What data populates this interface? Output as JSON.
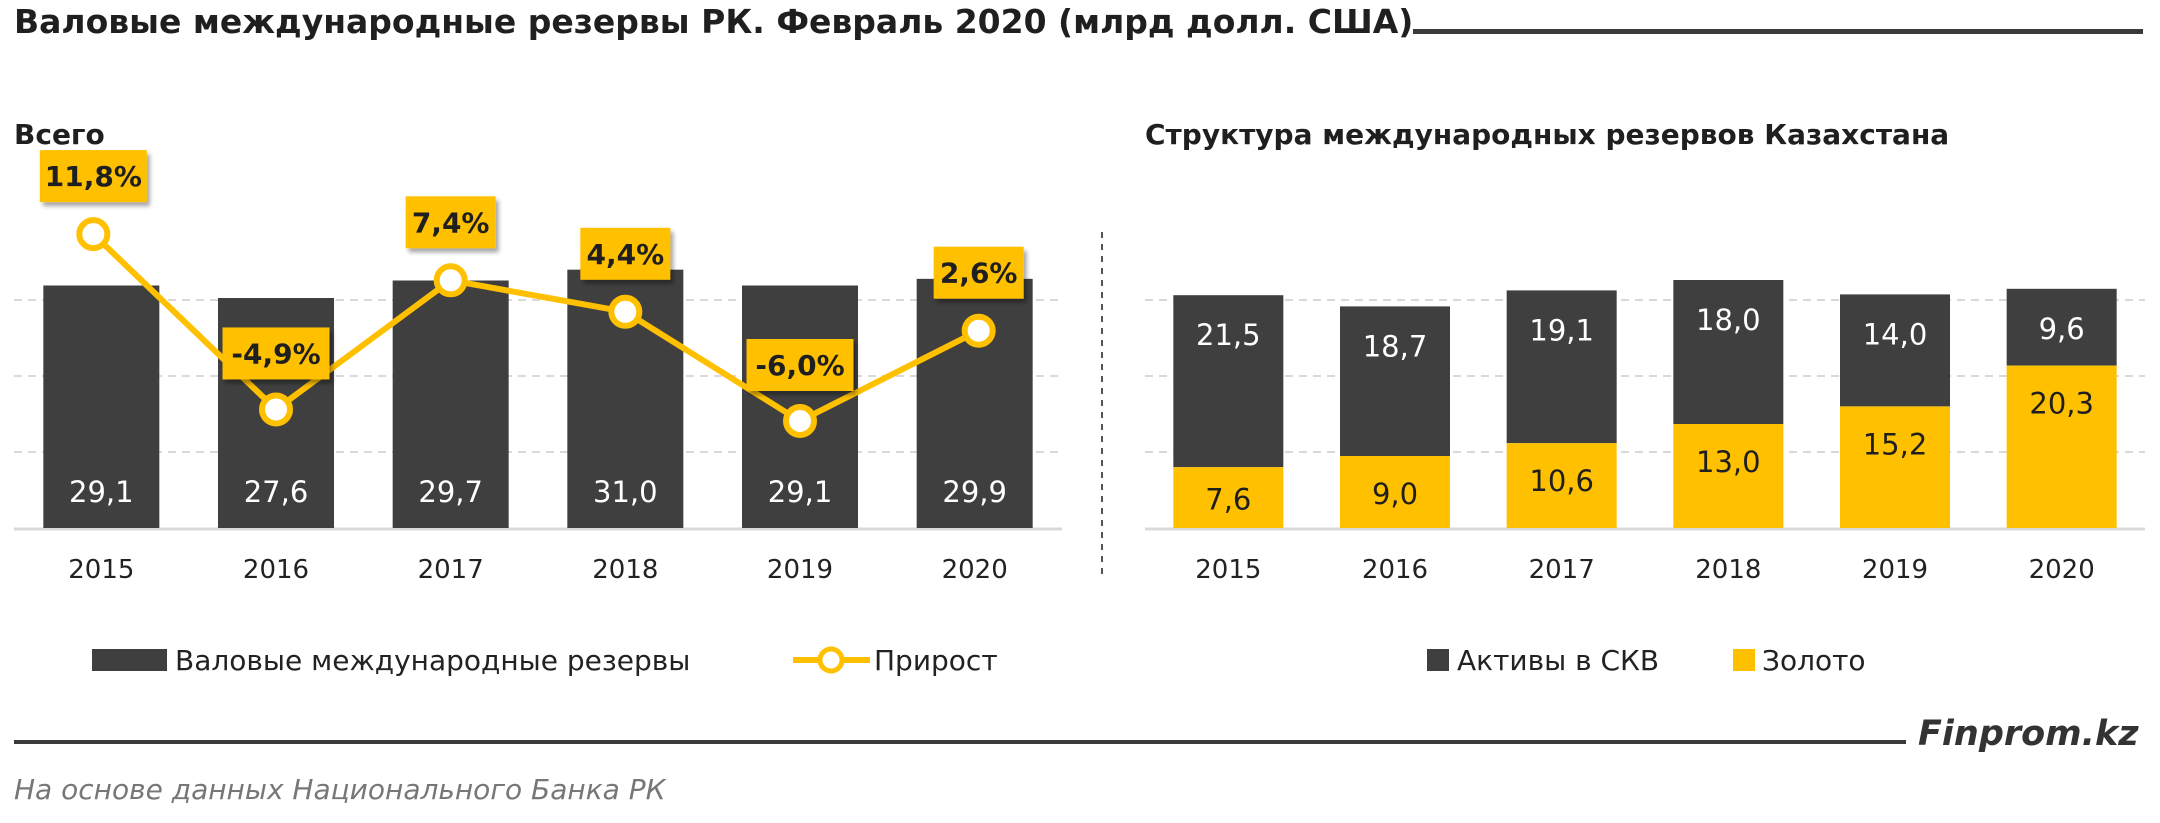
{
  "title": "Валовые международные резервы РК. Февраль 2020  (млрд долл. США)",
  "source_note": "На основе данных  Национального  Банка РК",
  "brand": "Finprom.kz",
  "colors": {
    "dark": "#3f3f3f",
    "gold": "#ffc000",
    "grid": "#d9d9d9",
    "label_box": "#ffc000"
  },
  "chart_data": [
    {
      "type": "bar",
      "title": "Всего",
      "categories": [
        "2015",
        "2016",
        "2017",
        "2018",
        "2019",
        "2020"
      ],
      "series": [
        {
          "name": "Валовые международные резервы",
          "type": "bar",
          "values": [
            29.1,
            27.6,
            29.7,
            31.0,
            29.1,
            29.9
          ],
          "labels": [
            "29,1",
            "27,6",
            "29,7",
            "31,0",
            "29,1",
            "29,9"
          ]
        },
        {
          "name": "Прирост",
          "type": "line",
          "unit": "%",
          "values": [
            11.8,
            -4.9,
            7.4,
            4.4,
            -6.0,
            2.6
          ],
          "labels": [
            "11,8%",
            "-4,9%",
            "7,4%",
            "4,4%",
            "-6,0%",
            "2,6%"
          ]
        }
      ],
      "grid": true,
      "legend": "bottom"
    },
    {
      "type": "bar",
      "stacked": true,
      "title": "Структура  международных  резервов Казахстана",
      "categories": [
        "2015",
        "2016",
        "2017",
        "2018",
        "2019",
        "2020"
      ],
      "series": [
        {
          "name": "Золото",
          "values": [
            7.6,
            9.0,
            10.6,
            13.0,
            15.2,
            20.3
          ],
          "labels": [
            "7,6",
            "9,0",
            "10,6",
            "13,0",
            "15,2",
            "20,3"
          ]
        },
        {
          "name": "Активы в СКВ",
          "values": [
            21.5,
            18.7,
            19.1,
            18.0,
            14.0,
            9.6
          ],
          "labels": [
            "21,5",
            "18,7",
            "19,1",
            "18,0",
            "14,0",
            "9,6"
          ]
        }
      ],
      "legend_order": [
        "Активы в СКВ",
        "Золото"
      ],
      "grid": true,
      "legend": "bottom"
    }
  ]
}
